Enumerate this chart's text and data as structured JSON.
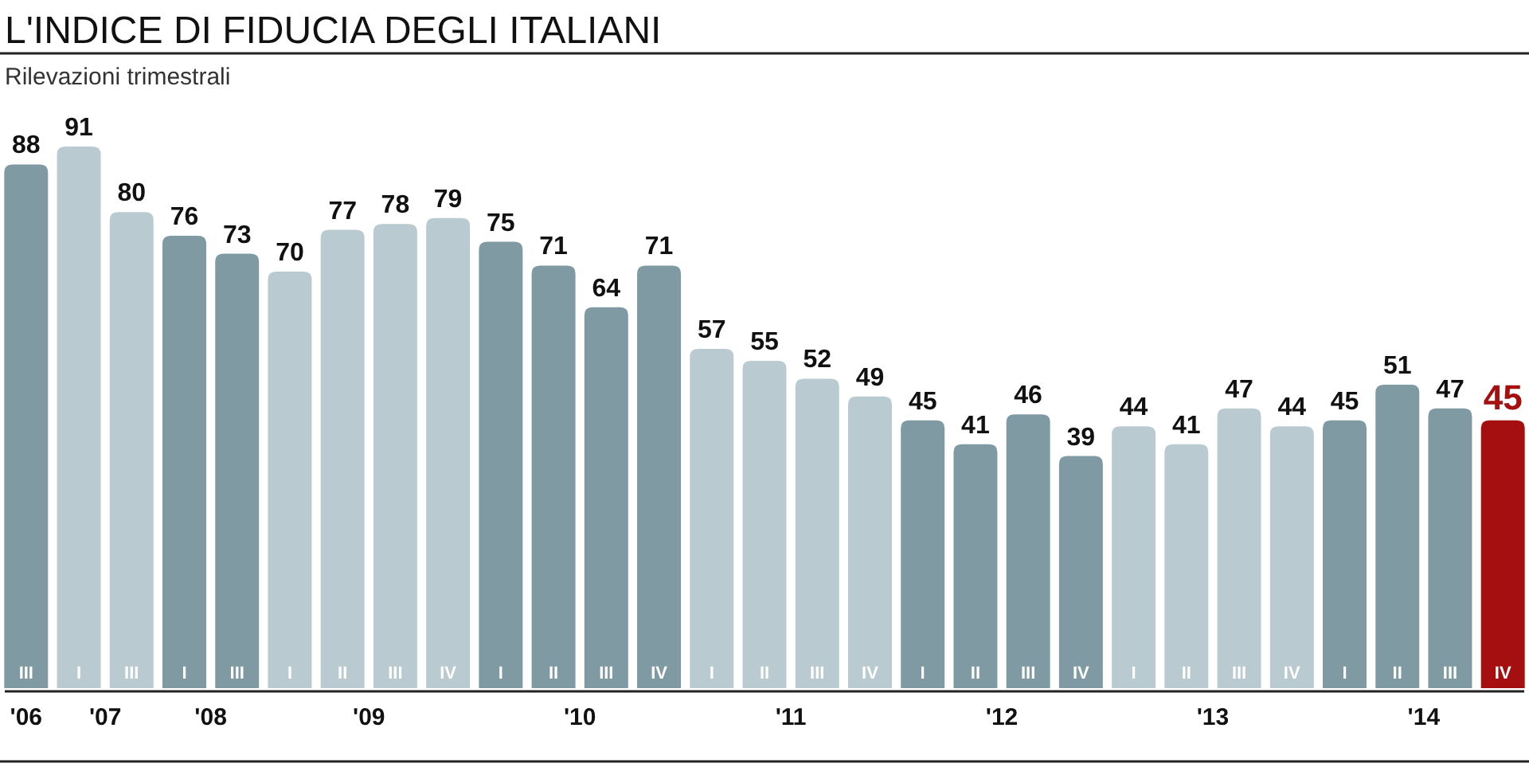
{
  "chart_data": {
    "type": "bar",
    "title": "L'INDICE DI FIDUCIA DEGLI ITALIANI",
    "subtitle": "Rilevazioni trimestrali",
    "categories": [
      "III",
      "I",
      "III",
      "I",
      "III",
      "I",
      "II",
      "III",
      "IV",
      "I",
      "II",
      "III",
      "IV",
      "I",
      "II",
      "III",
      "IV",
      "I",
      "II",
      "III",
      "IV",
      "I",
      "II",
      "III",
      "IV",
      "I",
      "II",
      "III",
      "IV"
    ],
    "values": [
      88,
      91,
      80,
      76,
      73,
      70,
      77,
      78,
      79,
      75,
      71,
      64,
      71,
      57,
      55,
      52,
      49,
      45,
      41,
      46,
      39,
      44,
      41,
      47,
      44,
      45,
      51,
      47,
      45
    ],
    "colors": [
      "#7f9aa3",
      "#b9cbd1",
      "#b9cbd1",
      "#7f9aa3",
      "#7f9aa3",
      "#b9cbd1",
      "#b9cbd1",
      "#b9cbd1",
      "#b9cbd1",
      "#7f9aa3",
      "#7f9aa3",
      "#7f9aa3",
      "#7f9aa3",
      "#b9cbd1",
      "#b9cbd1",
      "#b9cbd1",
      "#b9cbd1",
      "#7f9aa3",
      "#7f9aa3",
      "#7f9aa3",
      "#7f9aa3",
      "#b9cbd1",
      "#b9cbd1",
      "#b9cbd1",
      "#b9cbd1",
      "#7f9aa3",
      "#7f9aa3",
      "#7f9aa3",
      "#a50f0f"
    ],
    "data_labels": true,
    "annotations": [
      "'06",
      "'07",
      "'08",
      "'09",
      "'10",
      "'11",
      "'12",
      "'13",
      "'14"
    ]
  }
}
